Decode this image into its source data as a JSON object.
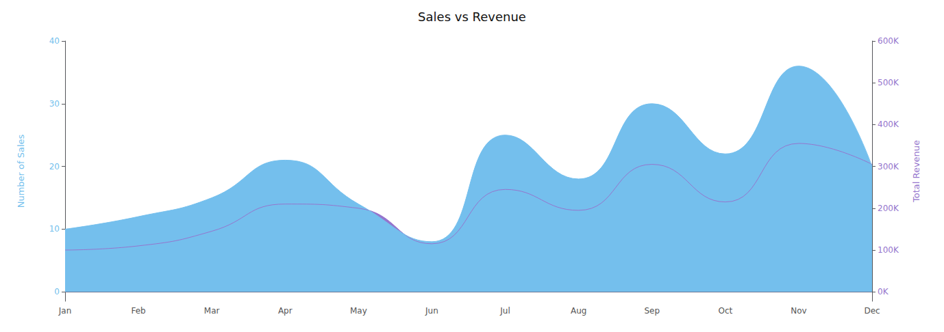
{
  "chart_data": {
    "type": "area",
    "title": "Sales vs Revenue",
    "categories": [
      "Jan",
      "Feb",
      "Mar",
      "Apr",
      "May",
      "Jun",
      "Jul",
      "Aug",
      "Sep",
      "Oct",
      "Nov",
      "Dec"
    ],
    "ylabel": "Number of Sales",
    "y2label": "Total Revenue",
    "series": [
      {
        "color": "#9575CD",
        "axis": "y2",
        "values": [
          100000,
          110000,
          145000,
          210000,
          200000,
          115000,
          245000,
          195000,
          305000,
          215000,
          355000,
          305000
        ]
      },
      {
        "color": "#74BFED",
        "values": [
          10,
          12,
          15,
          21,
          14,
          8,
          25,
          18,
          30,
          22,
          36,
          20
        ]
      }
    ],
    "ylim": [
      -1.5,
      40
    ],
    "yticks": [
      0,
      10,
      20,
      30,
      40
    ],
    "y2lim": [
      -22500,
      600000
    ],
    "y2ticks": [
      {
        "value": 0,
        "label": "0K"
      },
      {
        "value": 100000,
        "label": "100K"
      },
      {
        "value": 200000,
        "label": "200K"
      },
      {
        "value": 300000,
        "label": "300K"
      },
      {
        "value": 400000,
        "label": "400K"
      },
      {
        "value": 500000,
        "label": "500K"
      },
      {
        "value": 600000,
        "label": "600K"
      }
    ],
    "grid": false
  }
}
